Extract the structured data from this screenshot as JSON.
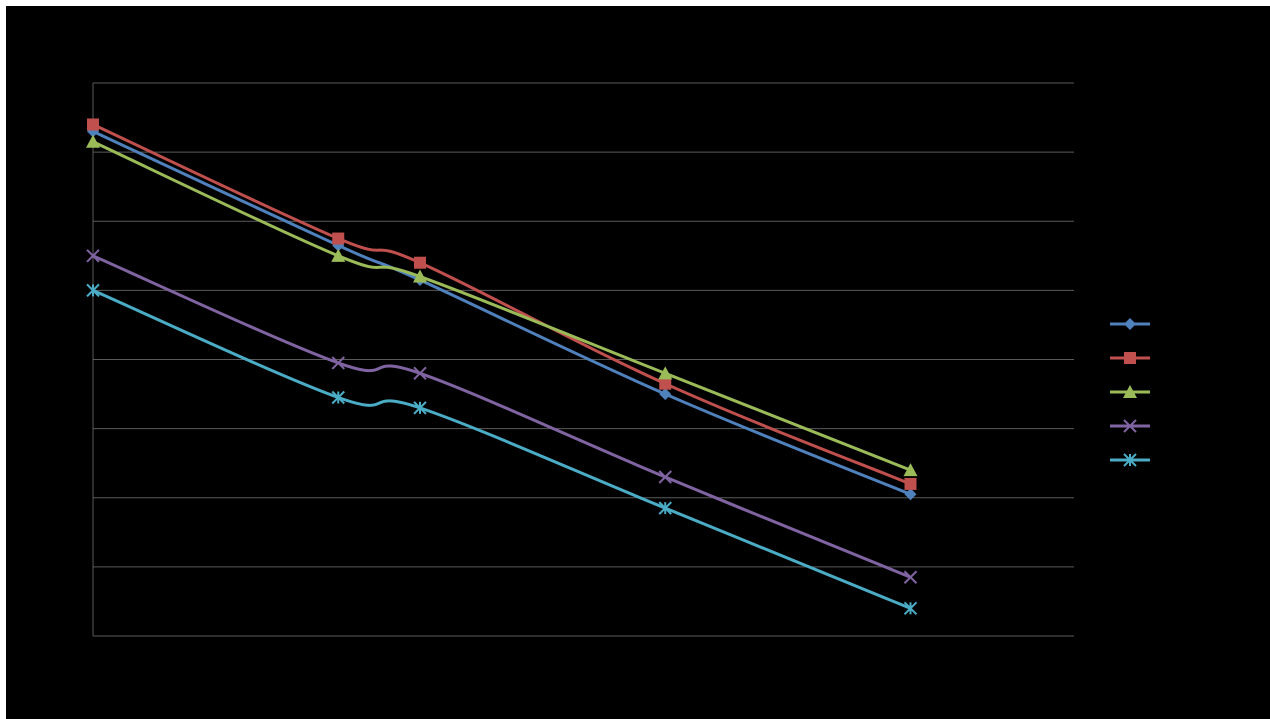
{
  "chart_data": {
    "type": "line",
    "title": "",
    "xlabel": "",
    "ylabel": "",
    "x": [
      0,
      3,
      4,
      7,
      10
    ],
    "xlim": [
      0,
      12
    ],
    "ylim": [
      0,
      8
    ],
    "y_gridlines": [
      0,
      1,
      2,
      3,
      4,
      5,
      6,
      7,
      8
    ],
    "grid": true,
    "legend_position": "right",
    "series": [
      {
        "color": "#4f81bd",
        "marker": "diamond",
        "values": [
          7.3,
          5.65,
          5.15,
          3.5,
          2.05
        ]
      },
      {
        "color": "#c0504d",
        "marker": "square",
        "values": [
          7.4,
          5.75,
          5.4,
          3.65,
          2.2
        ]
      },
      {
        "color": "#9bbb59",
        "marker": "triangle",
        "values": [
          7.15,
          5.5,
          5.2,
          3.8,
          2.4
        ]
      },
      {
        "color": "#8064a2",
        "marker": "x",
        "values": [
          5.5,
          3.95,
          3.8,
          2.3,
          0.85
        ]
      },
      {
        "color": "#4bacc6",
        "marker": "star",
        "values": [
          5.0,
          3.45,
          3.3,
          1.85,
          0.4
        ]
      }
    ]
  }
}
